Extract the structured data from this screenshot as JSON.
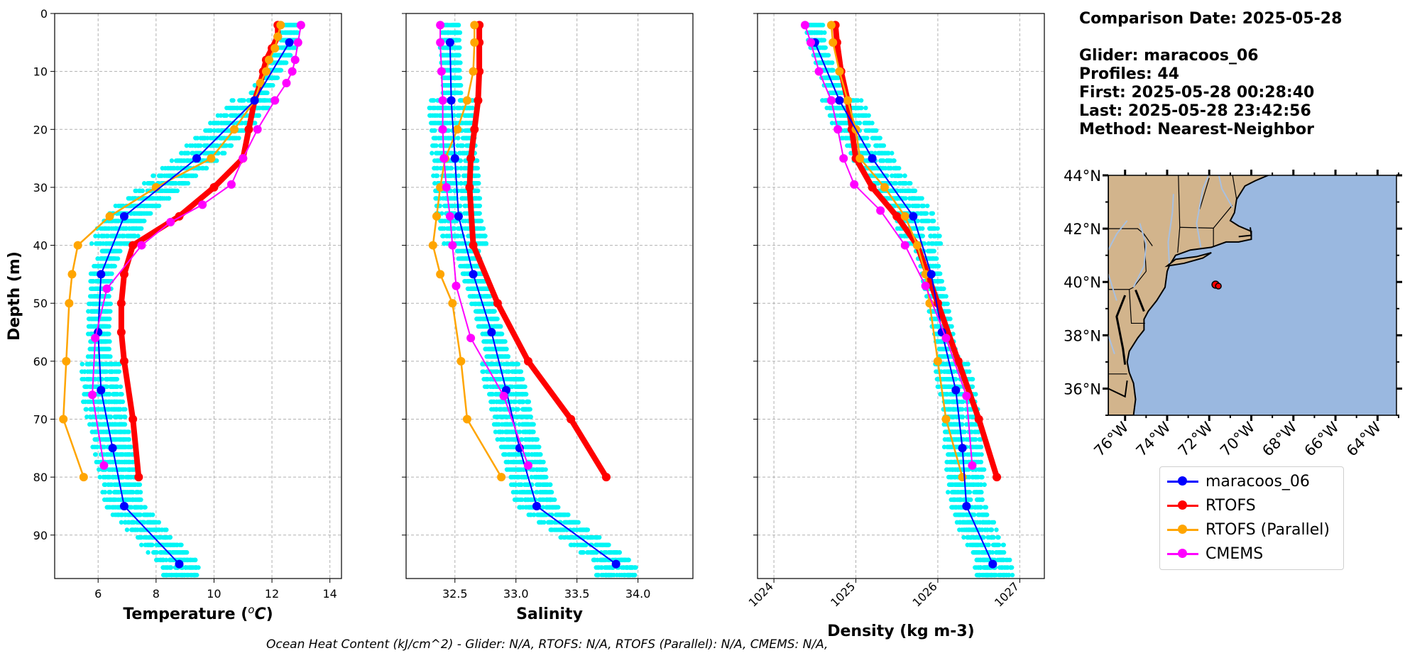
{
  "colors": {
    "glider_cloud": "#00f5f5",
    "maracoos_06": "#0000ff",
    "RTOFS": "#ff0000",
    "RTOFS_Parallel": "#ffa500",
    "CMEMS": "#ff00ff",
    "land": "#d2b48c",
    "ocean": "#9ab8e0",
    "river": "#a8c0e0"
  },
  "info": {
    "comparison_date": "Comparison Date: 2025-05-28",
    "glider": "Glider: maracoos_06",
    "profiles": "Profiles: 44",
    "first": "First: 2025-05-28 00:28:40",
    "last": "Last: 2025-05-28 23:42:56",
    "method": "Method: Nearest-Neighbor"
  },
  "footer": "Ocean Heat Content (kJ/cm^2) - Glider: N/A,  RTOFS: N/A,  RTOFS (Parallel): N/A,  CMEMS: N/A,",
  "legend": [
    "maracoos_06",
    "RTOFS",
    "RTOFS (Parallel)",
    "CMEMS"
  ],
  "chart_data": [
    {
      "type": "line",
      "xlabel": "Temperature (°C)",
      "ylabel": "Depth (m)",
      "xlim": [
        4.5,
        14.4
      ],
      "ylim": [
        97.5,
        0
      ],
      "xticks": [
        6,
        8,
        10,
        12,
        14
      ],
      "yticks": [
        0,
        10,
        20,
        30,
        40,
        50,
        60,
        70,
        80,
        90
      ],
      "grid": true,
      "series": [
        {
          "name": "maracoos_06",
          "depth": [
            5,
            15,
            25,
            35,
            45,
            55,
            65,
            75,
            85,
            95
          ],
          "values": [
            12.6,
            11.4,
            9.4,
            6.9,
            6.1,
            6.0,
            6.1,
            6.5,
            6.9,
            8.8
          ]
        },
        {
          "name": "RTOFS",
          "depth": [
            2,
            4,
            6,
            8,
            10,
            12,
            15,
            20,
            25,
            30,
            35,
            40,
            45,
            50,
            55,
            60,
            70,
            80
          ],
          "values": [
            12.2,
            12.2,
            12.0,
            11.8,
            11.7,
            11.6,
            11.4,
            11.2,
            11.0,
            10.0,
            8.8,
            7.2,
            6.9,
            6.8,
            6.8,
            6.9,
            7.2,
            7.4
          ]
        },
        {
          "name": "RTOFS (Parallel)",
          "depth": [
            2,
            4,
            6,
            8,
            10,
            12,
            15,
            20,
            25,
            30,
            35,
            40,
            45,
            50,
            60,
            70,
            80
          ],
          "values": [
            12.3,
            12.2,
            12.1,
            11.9,
            11.8,
            11.6,
            11.4,
            10.7,
            9.9,
            8.0,
            6.4,
            5.3,
            5.1,
            5.0,
            4.9,
            4.8,
            5.5
          ]
        },
        {
          "name": "CMEMS",
          "depth": [
            2,
            5,
            8,
            10,
            12,
            15,
            20,
            25,
            29.5,
            33,
            36,
            40,
            47.5,
            56,
            65.8,
            78
          ],
          "values": [
            13.0,
            12.9,
            12.8,
            12.7,
            12.5,
            12.1,
            11.5,
            11.0,
            10.6,
            9.6,
            8.5,
            7.5,
            6.3,
            5.9,
            5.8,
            6.2
          ]
        }
      ]
    },
    {
      "type": "line",
      "xlabel": "Salinity",
      "ylabel": "",
      "xlim": [
        32.1,
        34.45
      ],
      "ylim": [
        97.5,
        0
      ],
      "xticks": [
        32.5,
        33.0,
        33.5,
        34.0
      ],
      "xtick_labels": [
        "32.5",
        "33.0",
        "33.5",
        "34.0"
      ],
      "grid": true,
      "series": [
        {
          "name": "maracoos_06",
          "depth": [
            5,
            15,
            25,
            35,
            45,
            55,
            65,
            75,
            85,
            95
          ],
          "values": [
            32.46,
            32.47,
            32.5,
            32.53,
            32.65,
            32.8,
            32.92,
            33.03,
            33.17,
            33.82
          ]
        },
        {
          "name": "RTOFS",
          "depth": [
            2,
            5,
            10,
            15,
            20,
            25,
            30,
            40,
            50,
            60,
            70,
            80
          ],
          "values": [
            32.7,
            32.7,
            32.7,
            32.69,
            32.66,
            32.63,
            32.62,
            32.65,
            32.85,
            33.1,
            33.45,
            33.74
          ]
        },
        {
          "name": "RTOFS (Parallel)",
          "depth": [
            2,
            5,
            10,
            15,
            20,
            25,
            30,
            35,
            40,
            45,
            50,
            60,
            70,
            80
          ],
          "values": [
            32.66,
            32.66,
            32.65,
            32.6,
            32.52,
            32.42,
            32.38,
            32.35,
            32.32,
            32.38,
            32.48,
            32.55,
            32.6,
            32.88
          ]
        },
        {
          "name": "CMEMS",
          "depth": [
            2,
            5,
            10,
            15,
            20,
            25,
            30,
            35,
            40,
            47,
            56,
            66,
            78
          ],
          "values": [
            32.38,
            32.38,
            32.39,
            32.4,
            32.4,
            32.41,
            32.43,
            32.46,
            32.48,
            32.51,
            32.63,
            32.9,
            33.1
          ]
        }
      ]
    },
    {
      "type": "line",
      "xlabel": "Density (kg m-3)",
      "ylabel": "",
      "xlim": [
        1023.8,
        1027.3
      ],
      "ylim": [
        97.5,
        0
      ],
      "xticks": [
        1024,
        1025,
        1026,
        1027
      ],
      "grid": true,
      "series": [
        {
          "name": "maracoos_06",
          "depth": [
            5,
            15,
            25,
            35,
            45,
            55,
            65,
            75,
            85,
            95
          ],
          "values": [
            1024.5,
            1024.8,
            1025.2,
            1025.7,
            1025.92,
            1026.05,
            1026.22,
            1026.3,
            1026.35,
            1026.67
          ]
        },
        {
          "name": "RTOFS",
          "depth": [
            2,
            5,
            10,
            15,
            20,
            25,
            30,
            35,
            40,
            50,
            60,
            70,
            80
          ],
          "values": [
            1024.75,
            1024.77,
            1024.82,
            1024.9,
            1024.95,
            1025.0,
            1025.2,
            1025.5,
            1025.75,
            1026.0,
            1026.25,
            1026.5,
            1026.72
          ]
        },
        {
          "name": "RTOFS (Parallel)",
          "depth": [
            2,
            5,
            10,
            15,
            20,
            25,
            30,
            35,
            40,
            45,
            50,
            60,
            70,
            80
          ],
          "values": [
            1024.7,
            1024.72,
            1024.8,
            1024.9,
            1025.0,
            1025.05,
            1025.35,
            1025.6,
            1025.75,
            1025.85,
            1025.9,
            1026.0,
            1026.1,
            1026.3
          ]
        },
        {
          "name": "CMEMS",
          "depth": [
            2,
            5,
            10,
            15,
            20,
            25,
            29.5,
            34,
            40,
            47,
            56,
            66,
            78
          ],
          "values": [
            1024.38,
            1024.45,
            1024.55,
            1024.7,
            1024.78,
            1024.85,
            1024.98,
            1025.3,
            1025.6,
            1025.85,
            1026.1,
            1026.35,
            1026.42
          ]
        }
      ]
    }
  ],
  "map": {
    "lat_labels": [
      "44°N",
      "42°N",
      "40°N",
      "38°N",
      "36°N"
    ],
    "lon_labels": [
      "76°W",
      "74°W",
      "72°W",
      "70°W",
      "68°W",
      "66°W",
      "64°W"
    ],
    "lat_ticks": [
      44,
      42,
      40,
      38,
      36
    ],
    "lon_ticks": [
      -76,
      -74,
      -72,
      -70,
      -68,
      -66,
      -64
    ],
    "extent": {
      "lon": [
        -76.8,
        -63.1
      ],
      "lat": [
        35.0,
        44.0
      ]
    },
    "glider_position": {
      "lon": -71.7,
      "lat": 39.9
    }
  }
}
